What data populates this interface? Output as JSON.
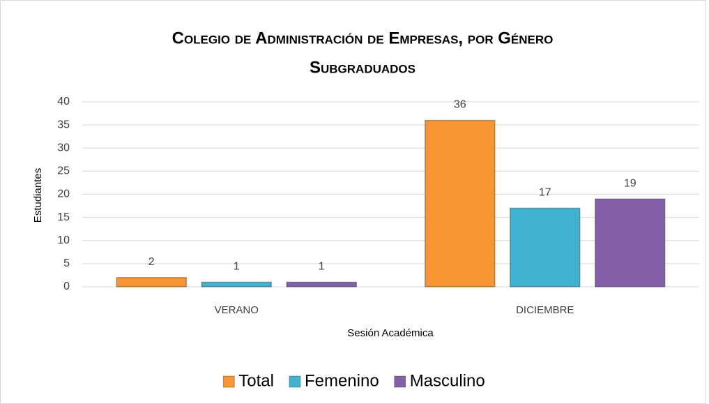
{
  "chart_data": {
    "type": "bar",
    "title": "Colegio de Administración de Empresas, por Género",
    "subtitle": "Subgraduados",
    "x_label": "Sesión Académica",
    "y_label": "Estudiantes",
    "categories": [
      "VERANO",
      "DICIEMBRE"
    ],
    "series": [
      {
        "name": "Total",
        "color": "#f79433",
        "values": [
          2,
          36
        ]
      },
      {
        "name": "Femenino",
        "color": "#3fb3d1",
        "values": [
          1,
          17
        ]
      },
      {
        "name": "Masculino",
        "color": "#8460a8",
        "values": [
          1,
          19
        ]
      }
    ],
    "ylim": [
      0,
      40
    ],
    "yticks": [
      0,
      5,
      10,
      15,
      20,
      25,
      30,
      35,
      40
    ],
    "grid": true,
    "legend": "bottom"
  }
}
